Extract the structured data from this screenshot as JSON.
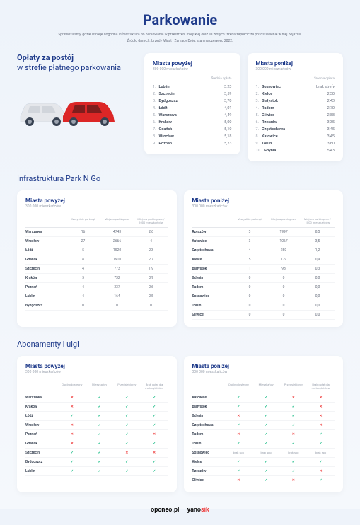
{
  "title": "Parkowanie",
  "subtitle": "Sprawdziliśmy, gdzie istnieje dogodna infrastruktura do parkowania w przestrzeni miejskiej oraz ile złotych trzeba zapłacić za pozostawienie w niej pojazdu.",
  "source": "Źródło danych: Urzędy Miast i Zarządy Dróg, stan na czerwiec 2022.",
  "fees": {
    "heading1": "Opłaty za postój",
    "heading2": "w strefie płatnego parkowania",
    "avg_label": "Średnia opłata",
    "over": {
      "title": "Miasta powyżej",
      "sub": "300 000 mieszkańców",
      "rows": [
        {
          "n": "1.",
          "city": "Lublin",
          "v": "3,23"
        },
        {
          "n": "2.",
          "city": "Szczecin",
          "v": "3,59"
        },
        {
          "n": "3.",
          "city": "Bydgoszcz",
          "v": "3,70"
        },
        {
          "n": "4.",
          "city": "Łódź",
          "v": "4,01"
        },
        {
          "n": "5.",
          "city": "Warszawa",
          "v": "4,49"
        },
        {
          "n": "6.",
          "city": "Kraków",
          "v": "5,00"
        },
        {
          "n": "7.",
          "city": "Gdańsk",
          "v": "5,10"
        },
        {
          "n": "8.",
          "city": "Wrocław",
          "v": "5,18"
        },
        {
          "n": "9.",
          "city": "Poznań",
          "v": "5,73"
        }
      ]
    },
    "under": {
      "title": "Miasta poniżej",
      "sub": "300 000 mieszkańców",
      "rows": [
        {
          "n": "1.",
          "city": "Sosnowiec",
          "v": "brak strefy"
        },
        {
          "n": "2.",
          "city": "Kielce",
          "v": "2,30"
        },
        {
          "n": "3.",
          "city": "Białystok",
          "v": "2,43"
        },
        {
          "n": "4.",
          "city": "Radom",
          "v": "2,70"
        },
        {
          "n": "5.",
          "city": "Gliwice",
          "v": "2,88"
        },
        {
          "n": "6.",
          "city": "Rzeszów",
          "v": "3,35"
        },
        {
          "n": "7.",
          "city": "Częstochowa",
          "v": "3,45"
        },
        {
          "n": "8.",
          "city": "Katowice",
          "v": "3,45"
        },
        {
          "n": "9.",
          "city": "Toruń",
          "v": "3,60"
        },
        {
          "n": "10.",
          "city": "Gdynia",
          "v": "5,43"
        }
      ]
    }
  },
  "infra": {
    "title": "Infrastruktura Park N Go",
    "cols": [
      "Wszystkie parkingi",
      "Miejsca parkingowe",
      "Miejsca parkingowe / 1000 mieszkańców"
    ],
    "over": {
      "title": "Miasta powyżej",
      "sub": "300 000 mieszkańców",
      "rows": [
        [
          "Warszawa",
          "16",
          "4743",
          "2,6"
        ],
        [
          "Wrocław",
          "27",
          "2666",
          "4"
        ],
        [
          "Łódź",
          "5",
          "1520",
          "2,3"
        ],
        [
          "Gdańsk",
          "8",
          "1910",
          "2,7"
        ],
        [
          "Szczecin",
          "4",
          "773",
          "1,9"
        ],
        [
          "Kraków",
          "5",
          "732",
          "0,9"
        ],
        [
          "Poznań",
          "4",
          "337",
          "0,6"
        ],
        [
          "Lublin",
          "4",
          "164",
          "0,5"
        ],
        [
          "Bydgoszcz",
          "0",
          "0",
          "0,0"
        ]
      ]
    },
    "under": {
      "title": "Miasta poniżej",
      "sub": "300 000 mieszkańców",
      "rows": [
        [
          "Rzeszów",
          "3",
          "1997",
          "8,5"
        ],
        [
          "Katowice",
          "3",
          "1067",
          "3,5"
        ],
        [
          "Częstochowa",
          "4",
          "250",
          "1,2"
        ],
        [
          "Kielce",
          "5",
          "179",
          "0,9"
        ],
        [
          "Białystok",
          "1",
          "98",
          "0,3"
        ],
        [
          "Gdynia",
          "0",
          "0",
          "0,0"
        ],
        [
          "Radom",
          "0",
          "0",
          "0,0"
        ],
        [
          "Sosnowiec",
          "0",
          "0",
          "0,0"
        ],
        [
          "Toruń",
          "0",
          "0",
          "0,0"
        ],
        [
          "Gliwice",
          "0",
          "0",
          "0,0"
        ]
      ]
    }
  },
  "disc": {
    "title": "Abonamenty i ulgi",
    "cols": [
      "Ogólnodostępny",
      "Mieszkańcy",
      "Przedsiębiorcy",
      "Brak opłat dla motocyklistów"
    ],
    "over": {
      "title": "Miasta powyżej",
      "sub": "300 000 mieszkańców",
      "rows": [
        {
          "city": "Warszawa",
          "v": [
            "x",
            "c",
            "c",
            "c"
          ]
        },
        {
          "city": "Kraków",
          "v": [
            "x",
            "c",
            "c",
            "c"
          ]
        },
        {
          "city": "Łódź",
          "v": [
            "c",
            "c",
            "c",
            "c"
          ]
        },
        {
          "city": "Wrocław",
          "v": [
            "x",
            "c",
            "c",
            "c"
          ]
        },
        {
          "city": "Poznań",
          "v": [
            "x",
            "c",
            "c",
            "x"
          ]
        },
        {
          "city": "Gdańsk",
          "v": [
            "x",
            "c",
            "c",
            "c"
          ]
        },
        {
          "city": "Szczecin",
          "v": [
            "c",
            "c",
            "x",
            "x"
          ]
        },
        {
          "city": "Bydgoszcz",
          "v": [
            "c",
            "c",
            "c",
            "c"
          ]
        },
        {
          "city": "Lublin",
          "v": [
            "c",
            "c",
            "c",
            "c"
          ]
        }
      ]
    },
    "under": {
      "title": "Miasta poniżej",
      "sub": "300 000 mieszkańców",
      "rows": [
        {
          "city": "Katowice",
          "v": [
            "c",
            "c",
            "x",
            "x"
          ]
        },
        {
          "city": "Białystok",
          "v": [
            "c",
            "c",
            "c",
            "x"
          ]
        },
        {
          "city": "Gdynia",
          "v": [
            "x",
            "c",
            "c",
            "x"
          ]
        },
        {
          "city": "Częstochowa",
          "v": [
            "c",
            "c",
            "c",
            "x"
          ]
        },
        {
          "city": "Radom",
          "v": [
            "x",
            "c",
            "x",
            "c"
          ]
        },
        {
          "city": "Toruń",
          "v": [
            "c",
            "c",
            "c",
            "c"
          ]
        },
        {
          "city": "Sosnowiec",
          "v": [
            "na",
            "na",
            "na",
            "na"
          ]
        },
        {
          "city": "Kielce",
          "v": [
            "c",
            "c",
            "c",
            "c"
          ]
        },
        {
          "city": "Rzeszów",
          "v": [
            "c",
            "c",
            "c",
            "x"
          ]
        },
        {
          "city": "Gliwice",
          "v": [
            "x",
            "c",
            "x",
            "c"
          ]
        }
      ]
    }
  },
  "footer": {
    "oponeo": "oponeo.pl",
    "yano1": "yano",
    "yano2": "sik",
    ".pl": ".pl"
  },
  "na_text": "brak spp"
}
